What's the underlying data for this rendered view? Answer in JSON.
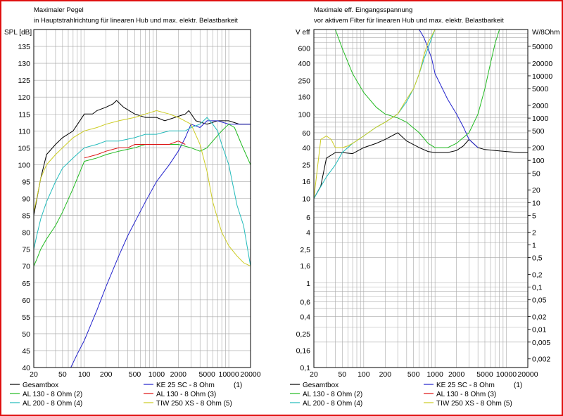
{
  "colors": {
    "Gesamtbox": "#000000",
    "AL 130 - 8 Ohm (2)": "#22bb22",
    "AL 130 - 8 Ohm (3)": "#dd1111",
    "KE 25 SC - 8 Ohm (1)": "#2222cc",
    "AL 200 - 8 Ohm (4)": "#22bbbb",
    "TIW 250 XS - 8 Ohm (5)": "#cccc22",
    "grid": "#a8a8a8",
    "frame": "#e01010"
  },
  "legend_items": [
    {
      "name": "Gesamtbox",
      "label": "Gesamtbox",
      "num": ""
    },
    {
      "name": "KE 25 SC - 8 Ohm (1)",
      "label": "KE 25 SC - 8 Ohm",
      "num": "(1)"
    },
    {
      "name": "AL 130 - 8 Ohm (2)",
      "label": "AL 130 - 8 Ohm (2)",
      "num": ""
    },
    {
      "name": "AL 130 - 8 Ohm (3)",
      "label": "AL 130 - 8 Ohm (3)",
      "num": ""
    },
    {
      "name": "AL 200 - 8 Ohm (4)",
      "label": "AL 200 - 8 Ohm (4)",
      "num": ""
    },
    {
      "name": "TIW 250 XS - 8 Ohm (5)",
      "label": "TIW 250 XS - 8 Ohm (5)",
      "num": ""
    }
  ],
  "chart_data": [
    {
      "type": "line",
      "title": "Maximaler Pegel",
      "subtitle": "in Hauptstrahlrichtung für linearen Hub und max. elektr. Belastbarkeit",
      "ylabel": "SPL [dB]",
      "xscale": "log",
      "xlim": [
        20,
        20000
      ],
      "ylim": [
        40,
        140
      ],
      "grid": true,
      "legend": "bottom",
      "xticks": [
        20,
        50,
        100,
        200,
        500,
        1000,
        2000,
        5000,
        10000,
        20000
      ],
      "xtick_labels": [
        "20",
        "50",
        "100",
        "200",
        "500",
        "1000",
        "2000",
        "5000",
        "10000",
        "20000"
      ],
      "yticks": [
        40,
        45,
        50,
        55,
        60,
        65,
        70,
        75,
        80,
        85,
        90,
        95,
        100,
        105,
        110,
        115,
        120,
        125,
        130,
        135
      ],
      "series": [
        {
          "name": "Gesamtbox",
          "x": [
            20,
            25,
            30,
            40,
            50,
            70,
            100,
            130,
            150,
            200,
            250,
            280,
            350,
            500,
            700,
            1000,
            1300,
            1800,
            2500,
            2800,
            3500,
            5000,
            7000,
            10000,
            14000,
            20000
          ],
          "y": [
            85,
            96,
            103,
            106,
            108,
            110,
            115,
            115,
            116,
            117,
            118,
            119,
            117,
            115,
            114,
            114,
            113,
            114,
            115,
            116,
            113,
            112,
            113,
            113,
            112,
            112
          ]
        },
        {
          "name": "KE 25 SC - 8 Ohm (1)",
          "x": [
            20,
            40,
            65,
            80,
            100,
            150,
            200,
            300,
            400,
            500,
            700,
            1000,
            1500,
            2000,
            2500,
            3000,
            4000,
            5000,
            7000,
            10000,
            15000,
            20000
          ],
          "y": [
            40,
            40,
            40,
            44,
            48,
            57,
            64,
            73,
            79,
            83,
            89,
            95,
            100,
            104,
            108,
            112,
            111,
            113,
            113,
            112,
            112,
            112
          ]
        },
        {
          "name": "AL 130 - 8 Ohm (2)",
          "x": [
            20,
            22,
            25,
            30,
            40,
            50,
            70,
            100,
            150,
            200,
            300,
            500,
            700,
            1000,
            1500,
            2000,
            3000,
            4000,
            5000,
            6000,
            8000,
            10000,
            12000,
            15000,
            20000
          ],
          "y": [
            70,
            72,
            75,
            78,
            82,
            86,
            93,
            101,
            102,
            103,
            104,
            105,
            106,
            106,
            106,
            106,
            105,
            104,
            105,
            107,
            110,
            112,
            111,
            106,
            100
          ]
        },
        {
          "name": "AL 130 - 8 Ohm (3)",
          "x": [
            100,
            150,
            200,
            300,
            400,
            500,
            700,
            1000,
            1500,
            2000,
            2500
          ],
          "y": [
            102,
            103,
            104,
            105,
            105,
            106,
            106,
            106,
            106,
            107,
            106
          ]
        },
        {
          "name": "AL 200 - 8 Ohm (4)",
          "x": [
            20,
            22,
            25,
            30,
            40,
            50,
            70,
            100,
            150,
            200,
            300,
            500,
            700,
            1000,
            1500,
            2000,
            2500,
            3000,
            4000,
            5000,
            6000,
            7000,
            8000,
            10000,
            13000,
            16000,
            20000
          ],
          "y": [
            75,
            79,
            84,
            89,
            95,
            99,
            102,
            105,
            106,
            107,
            107,
            108,
            109,
            109,
            110,
            110,
            110,
            111,
            112,
            114,
            112,
            110,
            106,
            100,
            88,
            82,
            70
          ]
        },
        {
          "name": "TIW 250 XS - 8 Ohm (5)",
          "x": [
            20,
            22,
            25,
            30,
            40,
            50,
            70,
            100,
            150,
            200,
            300,
            500,
            700,
            1000,
            1500,
            2000,
            3000,
            4000,
            5000,
            6000,
            7000,
            8000,
            10000,
            13000,
            16000,
            20000
          ],
          "y": [
            86,
            90,
            96,
            100,
            103,
            105,
            108,
            110,
            111,
            112,
            113,
            114,
            115,
            116,
            115,
            114,
            112,
            106,
            98,
            89,
            84,
            80,
            76,
            73,
            71,
            70
          ]
        }
      ]
    },
    {
      "type": "line",
      "title": "Maximale eff. Eingangsspannung",
      "subtitle": "vor aktivem Filter für linearen Hub und max. elektr. Belastbarkeit",
      "ylabel": "V eff",
      "y2label": "W/8Ohm",
      "xscale": "log",
      "yscale": "log",
      "xlim": [
        20,
        20000
      ],
      "ylim": [
        0.1,
        1000
      ],
      "grid": true,
      "legend": "bottom",
      "xticks": [
        20,
        50,
        100,
        200,
        500,
        1000,
        2000,
        5000,
        10000,
        20000
      ],
      "xtick_labels": [
        "20",
        "50",
        "100",
        "200",
        "500",
        "1000",
        "2000",
        "5000",
        "10000",
        "20000"
      ],
      "yticks": [
        0.1,
        0.16,
        0.25,
        0.4,
        0.6,
        1,
        1.6,
        2.5,
        4,
        6,
        10,
        16,
        25,
        40,
        60,
        100,
        160,
        250,
        400,
        600
      ],
      "ytick_labels": [
        "0,1",
        "0,16",
        "0,25",
        "0,4",
        "0,6",
        "1",
        "1,6",
        "2,5",
        "4",
        "6",
        "10",
        "16",
        "25",
        "40",
        "60",
        "100",
        "160",
        "250",
        "400",
        "600"
      ],
      "y2ticks": [
        0.002,
        0.005,
        0.01,
        0.02,
        0.05,
        0.1,
        0.2,
        0.5,
        1,
        2,
        5,
        10,
        20,
        50,
        100,
        200,
        500,
        1000,
        2000,
        5000,
        10000,
        20000,
        50000
      ],
      "y2tick_labels": [
        "0,002",
        "0,005",
        "0,01",
        "0,02",
        "0,05",
        "0,1",
        "0,2",
        "0,5",
        "1",
        "2",
        "5",
        "10",
        "20",
        "50",
        "100",
        "200",
        "500",
        "1000",
        "2000",
        "5000",
        "10000",
        "20000",
        "50000"
      ],
      "series": [
        {
          "name": "Gesamtbox",
          "x": [
            20,
            25,
            30,
            40,
            50,
            70,
            100,
            150,
            200,
            300,
            400,
            600,
            800,
            1000,
            1500,
            2000,
            2500,
            3000,
            4000,
            5000,
            7000,
            10000,
            15000,
            20000
          ],
          "y": [
            10,
            14,
            30,
            35,
            35,
            34,
            40,
            45,
            50,
            60,
            48,
            40,
            36,
            35,
            35,
            37,
            42,
            50,
            40,
            38,
            37,
            36,
            35,
            35
          ]
        },
        {
          "name": "KE 25 SC - 8 Ohm (1)",
          "x": [
            600,
            700,
            800,
            900,
            1000,
            1200,
            1500,
            2000,
            2500,
            3000,
            4000
          ],
          "y": [
            1000,
            800,
            600,
            450,
            300,
            220,
            150,
            100,
            70,
            50,
            40
          ]
        },
        {
          "name": "AL 130 - 8 Ohm (2)",
          "x": [
            40,
            50,
            70,
            100,
            150,
            200,
            300,
            400,
            600,
            800,
            1000,
            1500,
            2000,
            3000,
            4000,
            5000,
            6000,
            7000,
            8000,
            10000
          ],
          "y": [
            1000,
            600,
            300,
            180,
            120,
            100,
            90,
            80,
            60,
            45,
            40,
            40,
            45,
            60,
            100,
            200,
            400,
            700,
            1000,
            1000
          ]
        },
        {
          "name": "AL 200 - 8 Ohm (4)",
          "x": [
            20,
            30,
            40,
            50,
            70,
            100,
            150,
            200,
            300,
            400,
            500,
            600,
            700,
            800,
            900,
            1000
          ],
          "y": [
            10,
            18,
            25,
            35,
            45,
            55,
            70,
            80,
            100,
            140,
            200,
            300,
            450,
            600,
            800,
            1000
          ]
        },
        {
          "name": "TIW 250 XS - 8 Ohm (5)",
          "x": [
            20,
            25,
            30,
            35,
            40,
            50,
            60,
            70,
            100,
            150,
            200,
            300,
            400,
            500,
            600,
            700,
            800,
            1000
          ],
          "y": [
            10,
            50,
            55,
            50,
            40,
            40,
            42,
            45,
            55,
            70,
            80,
            100,
            150,
            200,
            300,
            500,
            700,
            1000
          ]
        }
      ]
    }
  ]
}
